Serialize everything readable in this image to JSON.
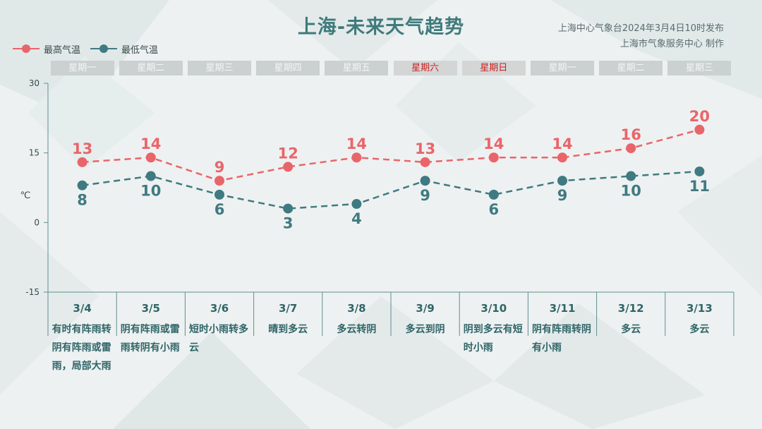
{
  "page": {
    "title": "上海-未来天气趋势",
    "source_line1": "上海中心气象台2024年3月4日10时发布",
    "source_line2": "上海市气象服务中心 制作"
  },
  "colors": {
    "high": "#e9656a",
    "low": "#3f7a82",
    "axis": "#5e8f92",
    "date_text": "#2f6568"
  },
  "chart_data": {
    "type": "line",
    "categories": [
      "3/4",
      "3/5",
      "3/6",
      "3/7",
      "3/8",
      "3/9",
      "3/10",
      "3/11",
      "3/12",
      "3/13"
    ],
    "weekdays": [
      "星期一",
      "星期二",
      "星期三",
      "星期四",
      "星期五",
      "星期六",
      "星期日",
      "星期一",
      "星期二",
      "星期三"
    ],
    "weekend": [
      false,
      false,
      false,
      false,
      false,
      true,
      true,
      false,
      false,
      false
    ],
    "conditions": [
      "有时有阵雨转阴有阵雨或雷雨，局部大雨",
      "阴有阵雨或雷雨转阴有小雨",
      "短时小雨转多云",
      "晴到多云",
      "多云转阴",
      "多云到阴",
      "阴到多云有短时小雨",
      "阴有阵雨转阴有小雨",
      "多云",
      "多云"
    ],
    "series": [
      {
        "name": "最高气温",
        "values": [
          13,
          14,
          9,
          12,
          14,
          13,
          14,
          14,
          16,
          20
        ]
      },
      {
        "name": "最低气温",
        "values": [
          8,
          10,
          6,
          3,
          4,
          9,
          6,
          9,
          10,
          11
        ]
      }
    ],
    "ylabel": "℃",
    "ylim": [
      -15,
      30
    ],
    "yticks": [
      "30",
      "15",
      "0",
      "-15"
    ]
  }
}
